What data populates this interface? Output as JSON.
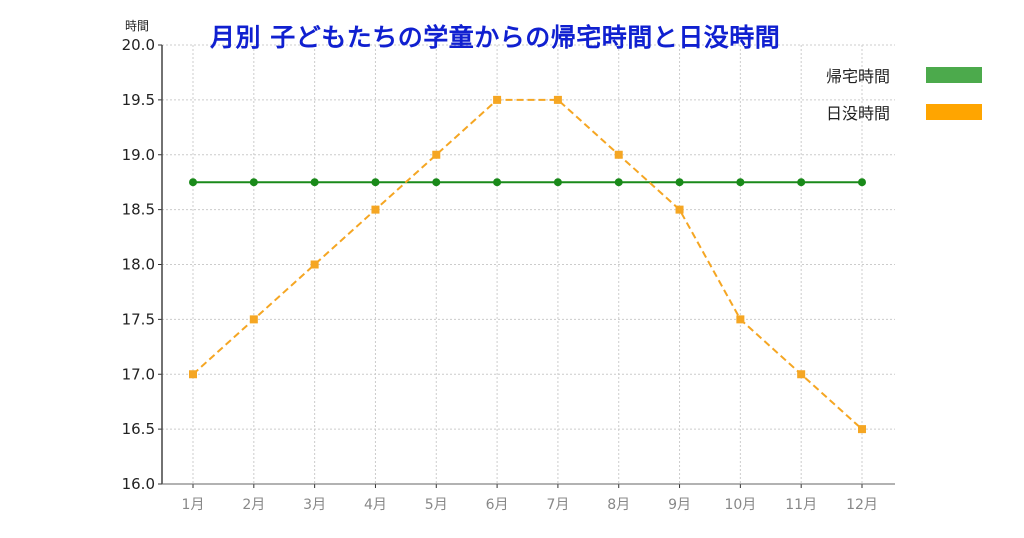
{
  "chart_data": {
    "type": "line",
    "title": "月別 子どもたちの学童からの帰宅時間と日没時間",
    "xlabel": "",
    "ylabel": "時間",
    "categories": [
      "1月",
      "2月",
      "3月",
      "4月",
      "5月",
      "6月",
      "7月",
      "8月",
      "9月",
      "10月",
      "11月",
      "12月"
    ],
    "series": [
      {
        "name": "帰宅時間",
        "color": "#1a8a1a",
        "legend_color": "#4caa4c",
        "line_style": "solid",
        "marker": "circle",
        "values": [
          18.75,
          18.75,
          18.75,
          18.75,
          18.75,
          18.75,
          18.75,
          18.75,
          18.75,
          18.75,
          18.75,
          18.75
        ]
      },
      {
        "name": "日没時間",
        "color": "#f5a623",
        "legend_color": "#ffa500",
        "line_style": "dashed",
        "marker": "square",
        "values": [
          17.0,
          17.5,
          18.0,
          18.5,
          19.0,
          19.5,
          19.5,
          19.0,
          18.5,
          17.5,
          17.0,
          16.5
        ]
      }
    ],
    "ylim": [
      16.0,
      20.0
    ],
    "yticks": [
      "16.0",
      "16.5",
      "17.0",
      "17.5",
      "18.0",
      "18.5",
      "19.0",
      "19.5",
      "20.0"
    ],
    "grid": true,
    "legend_position": "upper right outside"
  },
  "title_color": "#1020d0"
}
